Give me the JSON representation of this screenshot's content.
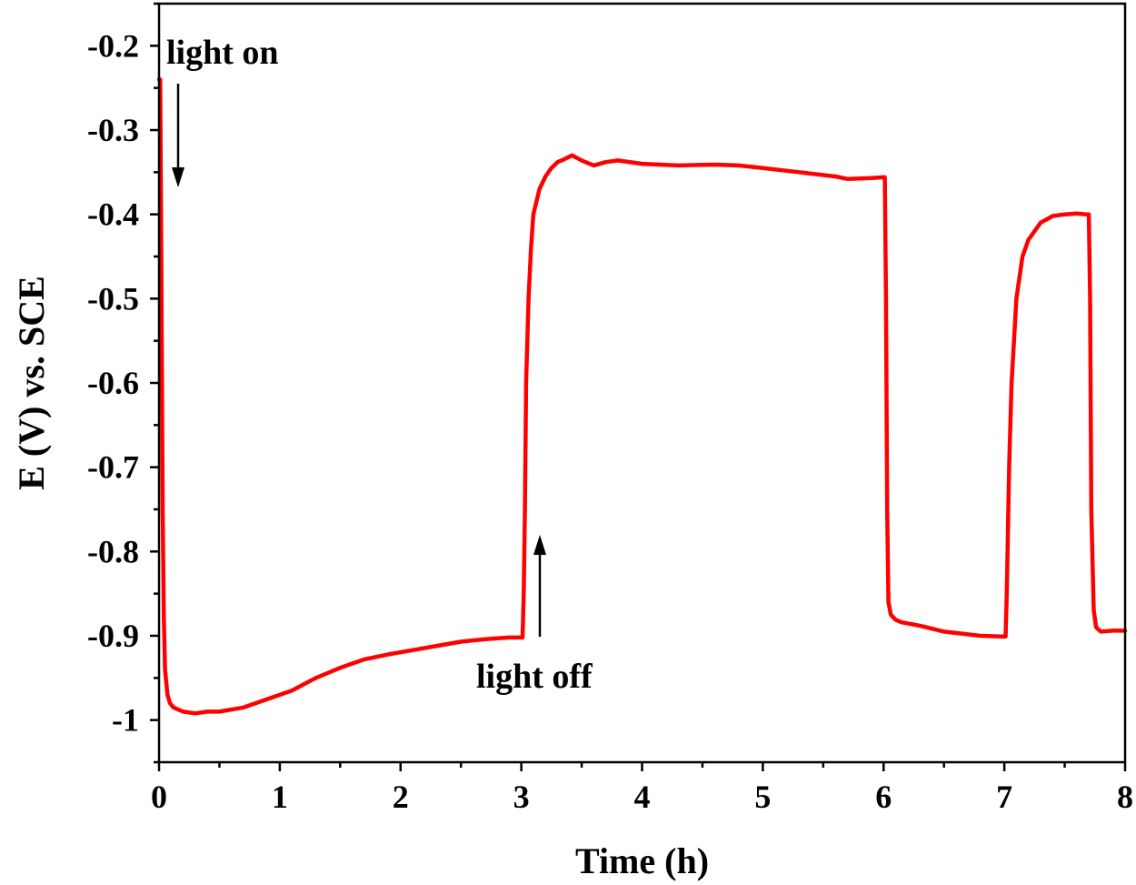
{
  "chart_data": {
    "type": "line",
    "xlabel": "Time (h)",
    "ylabel": "E (V) vs. SCE",
    "xlim": [
      0,
      8
    ],
    "ylim": [
      -1.05,
      -0.15
    ],
    "xticks": [
      "0",
      "1",
      "2",
      "3",
      "4",
      "5",
      "6",
      "7",
      "8"
    ],
    "yticks": [
      "-0.2",
      "-0.3",
      "-0.4",
      "-0.5",
      "-0.6",
      "-0.7",
      "-0.8",
      "-0.9",
      "-1"
    ],
    "grid": false,
    "legend": "none",
    "line_color": "#ff0000",
    "annotations": [
      {
        "text": "light on",
        "arrow": "down"
      },
      {
        "text": "light off",
        "arrow": "up"
      }
    ],
    "series": [
      {
        "x": [
          0.0,
          0.01,
          0.02,
          0.03,
          0.04,
          0.05,
          0.07,
          0.09,
          0.12,
          0.15,
          0.2,
          0.3,
          0.4,
          0.5,
          0.7,
          0.9,
          1.1,
          1.3,
          1.5,
          1.7,
          1.9,
          2.1,
          2.3,
          2.5,
          2.7,
          2.9,
          3.0,
          3.01,
          3.02,
          3.03,
          3.04,
          3.06,
          3.08,
          3.1,
          3.15,
          3.2,
          3.25,
          3.3,
          3.35,
          3.42,
          3.5,
          3.6,
          3.7,
          3.8,
          4.0,
          4.3,
          4.6,
          4.8,
          5.0,
          5.3,
          5.6,
          5.7,
          5.9,
          6.0,
          6.01,
          6.02,
          6.03,
          6.04,
          6.06,
          6.1,
          6.15,
          6.3,
          6.5,
          6.8,
          7.0,
          7.01,
          7.02,
          7.04,
          7.06,
          7.1,
          7.15,
          7.2,
          7.3,
          7.4,
          7.5,
          7.6,
          7.68,
          7.7,
          7.71,
          7.72,
          7.74,
          7.76,
          7.8,
          7.9,
          8.0
        ],
        "y": [
          -0.24,
          -0.24,
          -0.5,
          -0.75,
          -0.88,
          -0.94,
          -0.97,
          -0.98,
          -0.985,
          -0.987,
          -0.99,
          -0.992,
          -0.99,
          -0.99,
          -0.985,
          -0.975,
          -0.965,
          -0.95,
          -0.938,
          -0.928,
          -0.922,
          -0.917,
          -0.912,
          -0.907,
          -0.904,
          -0.902,
          -0.902,
          -0.902,
          -0.85,
          -0.75,
          -0.6,
          -0.5,
          -0.44,
          -0.4,
          -0.37,
          -0.355,
          -0.345,
          -0.338,
          -0.335,
          -0.33,
          -0.336,
          -0.342,
          -0.338,
          -0.336,
          -0.34,
          -0.342,
          -0.341,
          -0.342,
          -0.345,
          -0.35,
          -0.355,
          -0.358,
          -0.357,
          -0.356,
          -0.356,
          -0.5,
          -0.75,
          -0.86,
          -0.875,
          -0.881,
          -0.884,
          -0.888,
          -0.895,
          -0.9,
          -0.901,
          -0.901,
          -0.85,
          -0.7,
          -0.6,
          -0.5,
          -0.45,
          -0.43,
          -0.41,
          -0.402,
          -0.4,
          -0.399,
          -0.4,
          -0.4,
          -0.5,
          -0.75,
          -0.87,
          -0.89,
          -0.895,
          -0.894,
          -0.894
        ]
      }
    ]
  }
}
